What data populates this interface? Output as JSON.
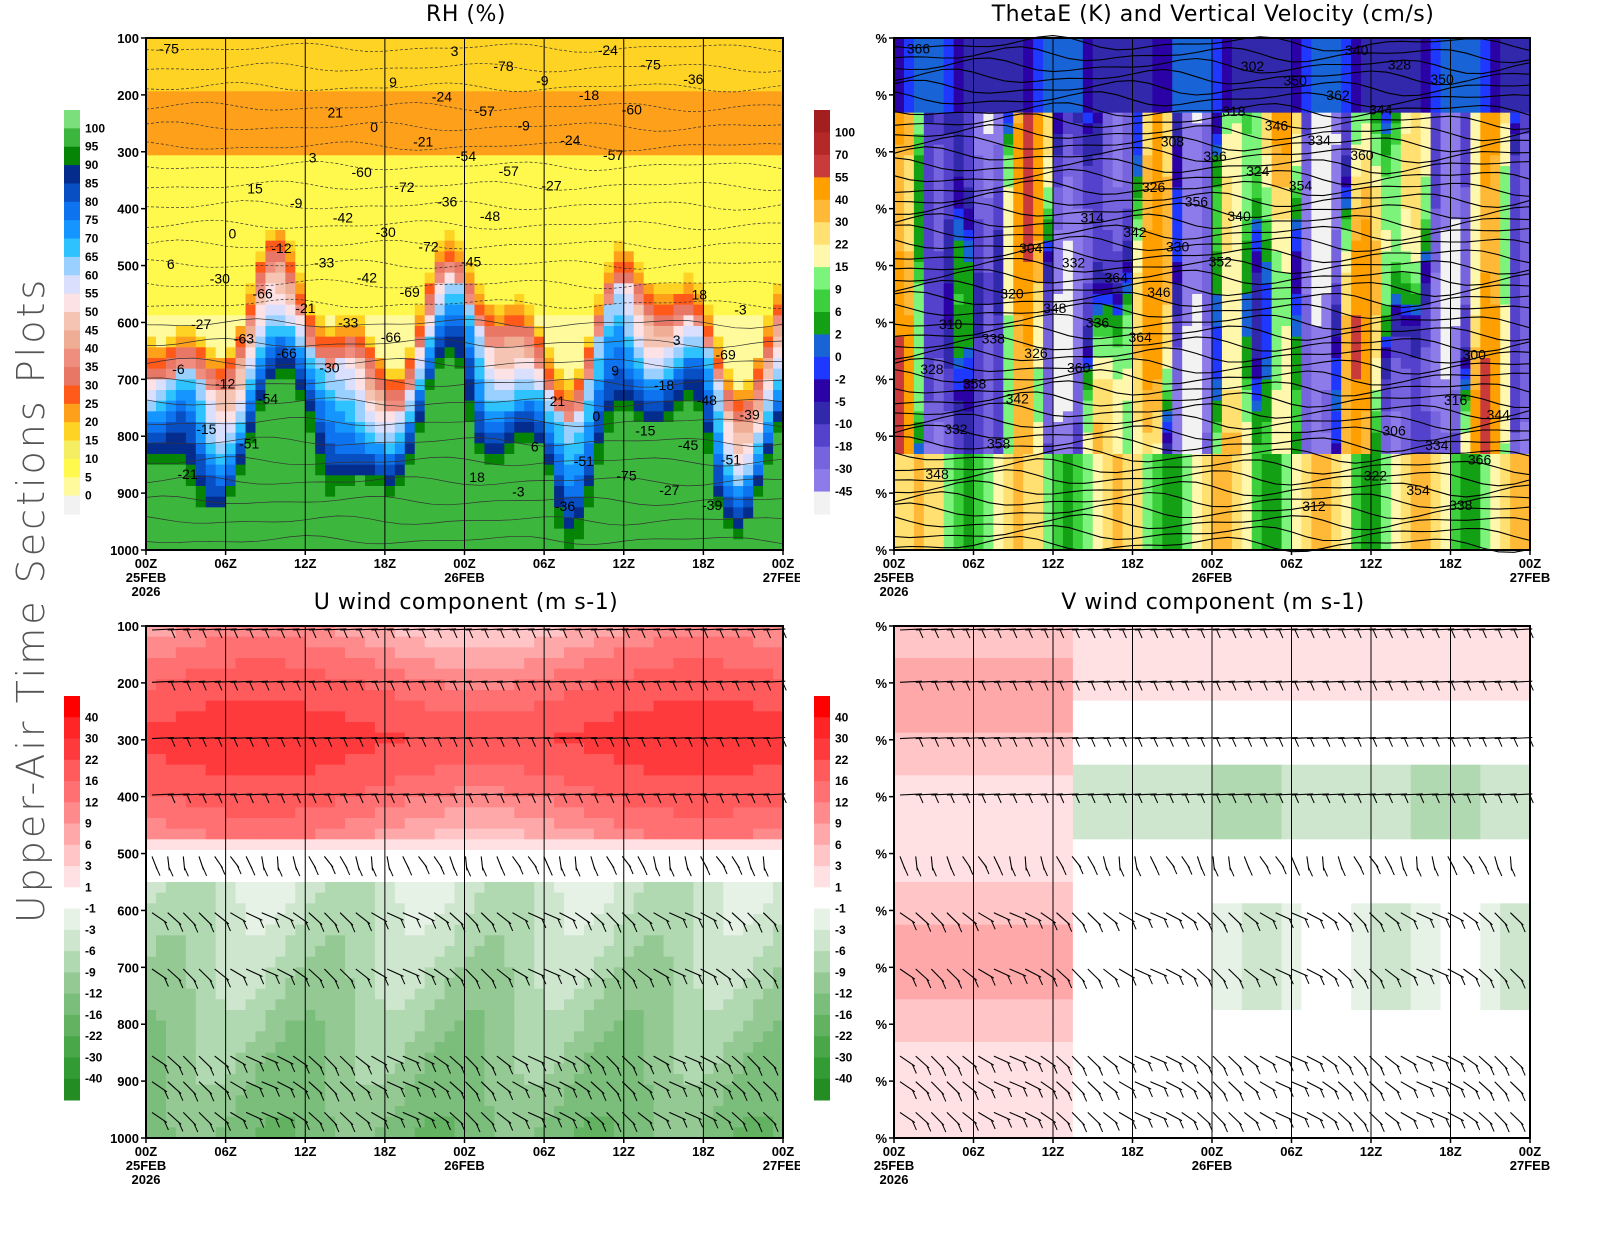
{
  "figure": {
    "side_title": "Upper-Air Time Sections Plots",
    "x_ticks": [
      "00Z",
      "06Z",
      "12Z",
      "18Z",
      "00Z",
      "06Z",
      "12Z",
      "18Z",
      "00Z"
    ],
    "x_dates": [
      "25FEB",
      "",
      "",
      "",
      "26FEB",
      "",
      "",
      "",
      "27FEB"
    ],
    "x_year": "2026",
    "colors": {
      "rh": [
        "#f2f2f2",
        "#fffa9c",
        "#fff94d",
        "#f5ee62",
        "#ffd323",
        "#ffa01a",
        "#ff5a1a",
        "#e87766",
        "#ef8e7e",
        "#f0ad95",
        "#f5c4b3",
        "#fce2e4",
        "#d9dffc",
        "#9ad0ff",
        "#2ec2ff",
        "#1595ff",
        "#0e73ef",
        "#094fc4",
        "#042c8c",
        "#068406",
        "#3cb63c",
        "#7be07b"
      ],
      "w": [
        "#f2f2f2",
        "#8e7bea",
        "#7663de",
        "#5442cc",
        "#3128ab",
        "#2a02a6",
        "#1e38ff",
        "#1864d6",
        "#14a014",
        "#3cd13c",
        "#7cf47c",
        "#fff7ab",
        "#ffe070",
        "#ffb936",
        "#ffa000",
        "#c93a3a",
        "#b52828",
        "#a31f1f"
      ],
      "uv": [
        "#238c23",
        "#339b33",
        "#49a749",
        "#62b262",
        "#7bbd7b",
        "#94c994",
        "#b1d9b1",
        "#cde6cd",
        "#e6f2e6",
        "#ffffff",
        "#ffe1e3",
        "#ffc5c7",
        "#ffa8aa",
        "#ff8a8c",
        "#ff7072",
        "#ff5a5c",
        "#ff3a3c",
        "#ff2426",
        "#ff0000"
      ]
    }
  },
  "chart_data": [
    {
      "type": "heatmap",
      "title": "RH (%)",
      "xlabel": "",
      "ylabel": "",
      "y_ticks": [
        "100",
        "200",
        "300",
        "400",
        "500",
        "600",
        "700",
        "800",
        "900",
        "1000"
      ],
      "ylim": [
        100,
        1000
      ],
      "colorbar": {
        "labels": [
          "100",
          "95",
          "90",
          "85",
          "80",
          "75",
          "70",
          "65",
          "60",
          "55",
          "50",
          "45",
          "40",
          "35",
          "30",
          "25",
          "20",
          "15",
          "10",
          "5",
          "0"
        ]
      },
      "overlay": "temperature contours (C)",
      "contour_labels": [
        "-75",
        "-66",
        "-57",
        "-51",
        "-45",
        "-36",
        "-30",
        "-27",
        "-21",
        "-69",
        "-60",
        "-54",
        "-48",
        "-39",
        "-33",
        "-24",
        "-15",
        "-72",
        "-75",
        "-66",
        "-57",
        "-51",
        "-42",
        "-18",
        "-12",
        "-36",
        "-27",
        "-21",
        "-9",
        "-39",
        "-30",
        "-24",
        "-63",
        "-54",
        "-45",
        "-33",
        "-9",
        "-6",
        "-72",
        "-75",
        "-66",
        "-57",
        "-48",
        "-42",
        "-36",
        "-27",
        "-21",
        "-15",
        "-12",
        "-78",
        "-69",
        "-60",
        "-51",
        "-30",
        "-24",
        "-18",
        "-9",
        "-3",
        "-3",
        "0",
        "0",
        "0",
        "3",
        "3",
        "3",
        "6",
        "6",
        "9",
        "9",
        "15",
        "18",
        "18",
        "21",
        "21"
      ],
      "grid": true
    },
    {
      "type": "heatmap",
      "title": "ThetaE (K) and Vertical Velocity (cm/s)",
      "xlabel": "",
      "ylabel": "",
      "y_ticks": [
        "%",
        "%",
        "%",
        "%",
        "%",
        "%",
        "%",
        "%",
        "%",
        "%"
      ],
      "colorbar": {
        "labels": [
          "100",
          "70",
          "55",
          "40",
          "30",
          "22",
          "15",
          "9",
          "6",
          "2",
          "0",
          "-2",
          "-5",
          "-10",
          "-18",
          "-30",
          "-45"
        ]
      },
      "overlay": "ThetaE contours (K)",
      "contour_labels": [
        "366",
        "364",
        "360",
        "358",
        "352",
        "350",
        "360",
        "354",
        "348",
        "346",
        "344",
        "342",
        "340",
        "338",
        "336",
        "334",
        "332",
        "330",
        "328",
        "326",
        "324",
        "366",
        "364",
        "362",
        "358",
        "356",
        "354",
        "348",
        "346",
        "344",
        "342",
        "340",
        "338",
        "336",
        "334",
        "332",
        "350",
        "328",
        "326",
        "322",
        "320",
        "318",
        "316",
        "314",
        "312",
        "310",
        "308",
        "306",
        "304",
        "302",
        "300"
      ],
      "grid": true
    },
    {
      "type": "heatmap",
      "title": "U wind component (m s-1)",
      "xlabel": "",
      "ylabel": "",
      "y_ticks": [
        "100",
        "200",
        "300",
        "400",
        "500",
        "600",
        "700",
        "800",
        "900",
        "1000"
      ],
      "ylim": [
        100,
        1000
      ],
      "colorbar": {
        "labels": [
          "40",
          "30",
          "22",
          "16",
          "12",
          "9",
          "6",
          "3",
          "1",
          "-1",
          "-3",
          "-6",
          "-9",
          "-12",
          "-16",
          "-22",
          "-30",
          "-40"
        ]
      },
      "overlay": "wind barbs",
      "grid": true
    },
    {
      "type": "heatmap",
      "title": "V wind component (m s-1)",
      "xlabel": "",
      "ylabel": "",
      "y_ticks": [
        "%",
        "%",
        "%",
        "%",
        "%",
        "%",
        "%",
        "%",
        "%",
        "%"
      ],
      "colorbar": {
        "labels": [
          "40",
          "30",
          "22",
          "16",
          "12",
          "9",
          "6",
          "3",
          "1",
          "-1",
          "-3",
          "-6",
          "-9",
          "-12",
          "-16",
          "-22",
          "-30",
          "-40"
        ]
      },
      "overlay": "wind barbs",
      "grid": true
    }
  ]
}
